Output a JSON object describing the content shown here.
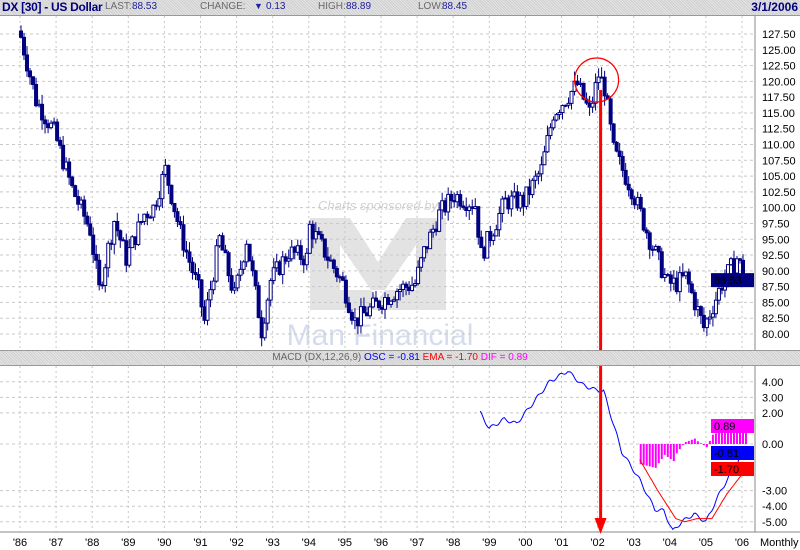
{
  "header": {
    "title": "DX [30] - US Dollar",
    "last_label": "LAST:",
    "last": "88.53",
    "change_label": "CHANGE:",
    "change": "0.13",
    "change_direction": "down",
    "high_label": "HIGH:",
    "high": "88.89",
    "low_label": "LOW:",
    "low": "88.45",
    "date": "3/1/2006"
  },
  "watermark": {
    "text": "Charts sponsored by",
    "logo": "ManFinancial"
  },
  "macd_label": {
    "name": "MACD (DX,12,26,9)",
    "osc": "OSC = -0.81",
    "ema": "EMA = -1.70",
    "dif": "DIF = 0.89"
  },
  "colors": {
    "candles": "#000080",
    "osc": "#0000ff",
    "ema": "#ff0000",
    "dif": "#ff00ff",
    "annotation": "#ff0000"
  },
  "chart_data": [
    {
      "type": "candlestick",
      "period": "Monthly",
      "ylim": [
        78,
        130
      ],
      "yticks": [
        "127.50",
        "125.00",
        "122.50",
        "120.00",
        "117.50",
        "115.00",
        "112.50",
        "110.00",
        "107.50",
        "105.00",
        "102.50",
        "100.00",
        "97.50",
        "95.00",
        "92.50",
        "90.00",
        "87.50",
        "85.00",
        "82.50",
        "80.00"
      ],
      "last_value_label": "88.53",
      "xticks": [
        "'86",
        "'87",
        "'88",
        "'89",
        "'90",
        "'91",
        "'92",
        "'93",
        "'94",
        "'95",
        "'96",
        "'97",
        "'98",
        "'99",
        "'00",
        "'01",
        "'02",
        "'03",
        "'04",
        "'05",
        "'06"
      ],
      "close_anchors": [
        [
          "1986-01",
          127
        ],
        [
          "1986-06",
          117
        ],
        [
          "1986-12",
          112
        ],
        [
          "1987-06",
          103
        ],
        [
          "1987-12",
          96.5
        ],
        [
          "1988-03",
          87
        ],
        [
          "1988-08",
          98
        ],
        [
          "1988-12",
          92
        ],
        [
          "1989-06",
          99
        ],
        [
          "1989-09",
          100
        ],
        [
          "1990-01",
          106
        ],
        [
          "1990-06",
          96
        ],
        [
          "1990-12",
          87
        ],
        [
          "1991-02",
          82
        ],
        [
          "1991-07",
          95
        ],
        [
          "1991-12",
          86
        ],
        [
          "1992-04",
          95
        ],
        [
          "1992-09",
          80.6
        ],
        [
          "1992-12",
          88.5
        ],
        [
          "1993-06",
          93
        ],
        [
          "1993-12",
          92
        ],
        [
          "1994-01",
          97
        ],
        [
          "1994-06",
          93
        ],
        [
          "1994-12",
          88
        ],
        [
          "1995-04",
          82
        ],
        [
          "1995-12",
          85
        ],
        [
          "1996-06",
          87
        ],
        [
          "1996-12",
          88
        ],
        [
          "1997-03",
          93
        ],
        [
          "1997-08",
          99
        ],
        [
          "1998-01",
          102
        ],
        [
          "1998-08",
          100.5
        ],
        [
          "1998-10",
          92.5
        ],
        [
          "1999-06",
          101
        ],
        [
          "1999-12",
          101
        ],
        [
          "2000-06",
          106
        ],
        [
          "2000-10",
          115
        ],
        [
          "2001-06",
          119.5
        ],
        [
          "2001-10",
          115
        ],
        [
          "2002-01",
          121
        ],
        [
          "2002-03",
          119
        ],
        [
          "2002-06",
          109
        ],
        [
          "2002-12",
          103
        ],
        [
          "2003-06",
          95
        ],
        [
          "2003-12",
          88
        ],
        [
          "2004-03",
          88
        ],
        [
          "2004-06",
          89
        ],
        [
          "2004-12",
          81
        ],
        [
          "2005-06",
          88
        ],
        [
          "2005-11",
          92
        ],
        [
          "2006-02",
          88.53
        ]
      ],
      "annotation": {
        "type": "circle-and-arrow",
        "date": "2002-02"
      }
    },
    {
      "type": "line",
      "title": "MACD (DX,12,26,9)",
      "ylim": [
        -6,
        5
      ],
      "yticks": [
        "4.00",
        "3.00",
        "2.00",
        "0.00",
        "-3.00",
        "-4.00",
        "-5.00"
      ],
      "value_labels": {
        "dif": "0.89",
        "osc": "-0.81",
        "ema": "-1.70"
      },
      "xlabel": "Monthly",
      "series": [
        {
          "name": "OSC",
          "anchors": [
            [
              "1998-10",
              2.0
            ],
            [
              "1999-01",
              1.0
            ],
            [
              "1999-06",
              1.6
            ],
            [
              "1999-10",
              1.3
            ],
            [
              "2000-03",
              2.5
            ],
            [
              "2000-09",
              4.0
            ],
            [
              "2001-03",
              4.7
            ],
            [
              "2001-08",
              3.8
            ],
            [
              "2001-12",
              3.5
            ],
            [
              "2002-03",
              3.4
            ],
            [
              "2002-09",
              -0.5
            ],
            [
              "2003-03",
              -2.3
            ],
            [
              "2003-08",
              -4.2
            ],
            [
              "2003-11",
              -4.3
            ],
            [
              "2004-02",
              -5.6
            ],
            [
              "2004-05",
              -5.0
            ],
            [
              "2004-09",
              -4.5
            ],
            [
              "2005-01",
              -5.0
            ],
            [
              "2005-06",
              -3.0
            ],
            [
              "2005-12",
              -1.0
            ],
            [
              "2006-02",
              -0.81
            ]
          ]
        },
        {
          "name": "EMA",
          "anchors": [
            [
              "2003-03",
              -1.0
            ],
            [
              "2003-09",
              -3.0
            ],
            [
              "2004-03",
              -4.8
            ],
            [
              "2004-06",
              -5.0
            ],
            [
              "2004-10",
              -4.8
            ],
            [
              "2005-03",
              -4.8
            ],
            [
              "2005-08",
              -3.2
            ],
            [
              "2006-02",
              -1.7
            ]
          ]
        },
        {
          "name": "DIF",
          "derived": "OSC - EMA"
        }
      ]
    }
  ]
}
